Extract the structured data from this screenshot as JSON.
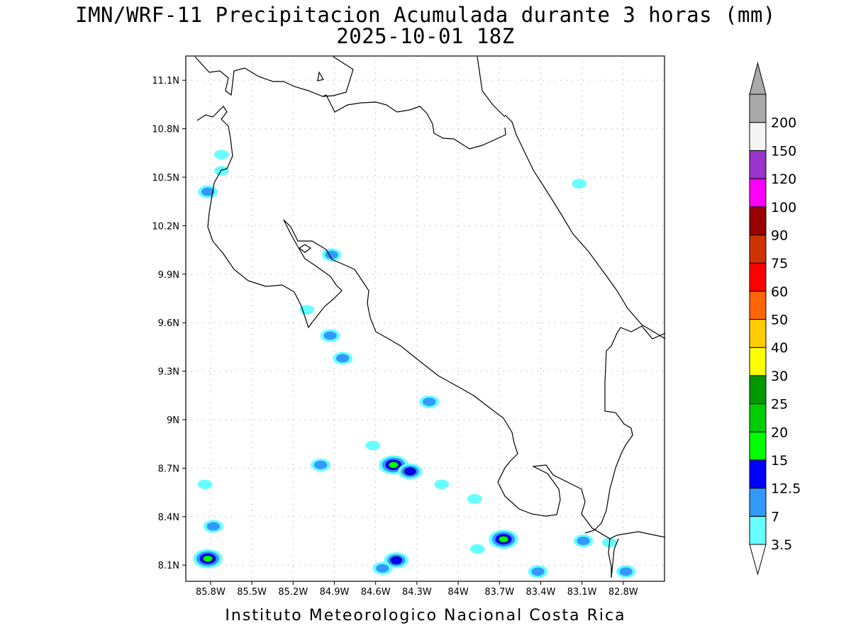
{
  "title_line1": "IMN/WRF-11 Precipitacion Acumulada durante 3 horas (mm)",
  "title_line2": "2025-10-01 18Z",
  "footer": "Instituto Meteorologico Nacional Costa Rica",
  "map": {
    "lon_range": [
      -85.98,
      -82.5
    ],
    "lat_range": [
      8.0,
      11.25
    ],
    "x_ticks": [
      {
        "lon": -85.8,
        "label": "85.8W"
      },
      {
        "lon": -85.5,
        "label": "85.5W"
      },
      {
        "lon": -85.2,
        "label": "85.2W"
      },
      {
        "lon": -84.9,
        "label": "84.9W"
      },
      {
        "lon": -84.6,
        "label": "84.6W"
      },
      {
        "lon": -84.3,
        "label": "84.3W"
      },
      {
        "lon": -84.0,
        "label": "84W"
      },
      {
        "lon": -83.7,
        "label": "83.7W"
      },
      {
        "lon": -83.4,
        "label": "83.4W"
      },
      {
        "lon": -83.1,
        "label": "83.1W"
      },
      {
        "lon": -82.8,
        "label": "82.8W"
      }
    ],
    "y_ticks": [
      {
        "lat": 8.1,
        "label": "8.1N"
      },
      {
        "lat": 8.4,
        "label": "8.4N"
      },
      {
        "lat": 8.7,
        "label": "8.7N"
      },
      {
        "lat": 9.0,
        "label": "9N"
      },
      {
        "lat": 9.3,
        "label": "9.3N"
      },
      {
        "lat": 9.6,
        "label": "9.6N"
      },
      {
        "lat": 9.9,
        "label": "9.9N"
      },
      {
        "lat": 10.2,
        "label": "10.2N"
      },
      {
        "lat": 10.5,
        "label": "10.5N"
      },
      {
        "lat": 10.8,
        "label": "10.8N"
      },
      {
        "lat": 11.1,
        "label": "11.1N"
      }
    ],
    "grid": true,
    "precip_cells": [
      {
        "lon": -85.82,
        "lat": 8.14,
        "level": 3
      },
      {
        "lon": -85.78,
        "lat": 8.34,
        "level": 1
      },
      {
        "lon": -85.72,
        "lat": 10.64,
        "level": 0
      },
      {
        "lon": -85.72,
        "lat": 10.54,
        "level": 0
      },
      {
        "lon": -85.82,
        "lat": 10.41,
        "level": 1
      },
      {
        "lon": -85.84,
        "lat": 8.6,
        "level": 0
      },
      {
        "lon": -85.1,
        "lat": 9.68,
        "level": 0
      },
      {
        "lon": -85.0,
        "lat": 8.72,
        "level": 1
      },
      {
        "lon": -84.93,
        "lat": 9.52,
        "level": 1
      },
      {
        "lon": -84.84,
        "lat": 9.38,
        "level": 1
      },
      {
        "lon": -84.92,
        "lat": 10.02,
        "level": 1
      },
      {
        "lon": -84.47,
        "lat": 8.72,
        "level": 3
      },
      {
        "lon": -84.35,
        "lat": 8.68,
        "level": 2
      },
      {
        "lon": -84.21,
        "lat": 9.11,
        "level": 1
      },
      {
        "lon": -84.45,
        "lat": 8.13,
        "level": 2
      },
      {
        "lon": -84.55,
        "lat": 8.08,
        "level": 1
      },
      {
        "lon": -83.88,
        "lat": 8.51,
        "level": 0
      },
      {
        "lon": -83.67,
        "lat": 8.26,
        "level": 3
      },
      {
        "lon": -83.86,
        "lat": 8.2,
        "level": 0
      },
      {
        "lon": -83.42,
        "lat": 8.06,
        "level": 1
      },
      {
        "lon": -83.09,
        "lat": 8.25,
        "level": 1
      },
      {
        "lon": -82.78,
        "lat": 8.06,
        "level": 1
      },
      {
        "lon": -82.9,
        "lat": 8.24,
        "level": 0
      },
      {
        "lon": -83.12,
        "lat": 10.46,
        "level": 0
      },
      {
        "lon": -84.12,
        "lat": 8.6,
        "level": 0
      },
      {
        "lon": -84.62,
        "lat": 8.84,
        "level": 0
      }
    ]
  },
  "legend": {
    "levels": [
      {
        "label": "3.5",
        "color": "#66ffff"
      },
      {
        "label": "7",
        "color": "#3399ff"
      },
      {
        "label": "12.5",
        "color": "#0000ff"
      },
      {
        "label": "15",
        "color": "#00ff00"
      },
      {
        "label": "20",
        "color": "#00cc00"
      },
      {
        "label": "25",
        "color": "#009900"
      },
      {
        "label": "30",
        "color": "#ffff00"
      },
      {
        "label": "40",
        "color": "#ffcc00"
      },
      {
        "label": "50",
        "color": "#ff6600"
      },
      {
        "label": "60",
        "color": "#ff0000"
      },
      {
        "label": "75",
        "color": "#cc3300"
      },
      {
        "label": "90",
        "color": "#990000"
      },
      {
        "label": "100",
        "color": "#ff00ff"
      },
      {
        "label": "120",
        "color": "#9933cc"
      },
      {
        "label": "150",
        "color": "#f5f5f5"
      },
      {
        "label": "200",
        "color": "#aaaaaa"
      }
    ]
  }
}
